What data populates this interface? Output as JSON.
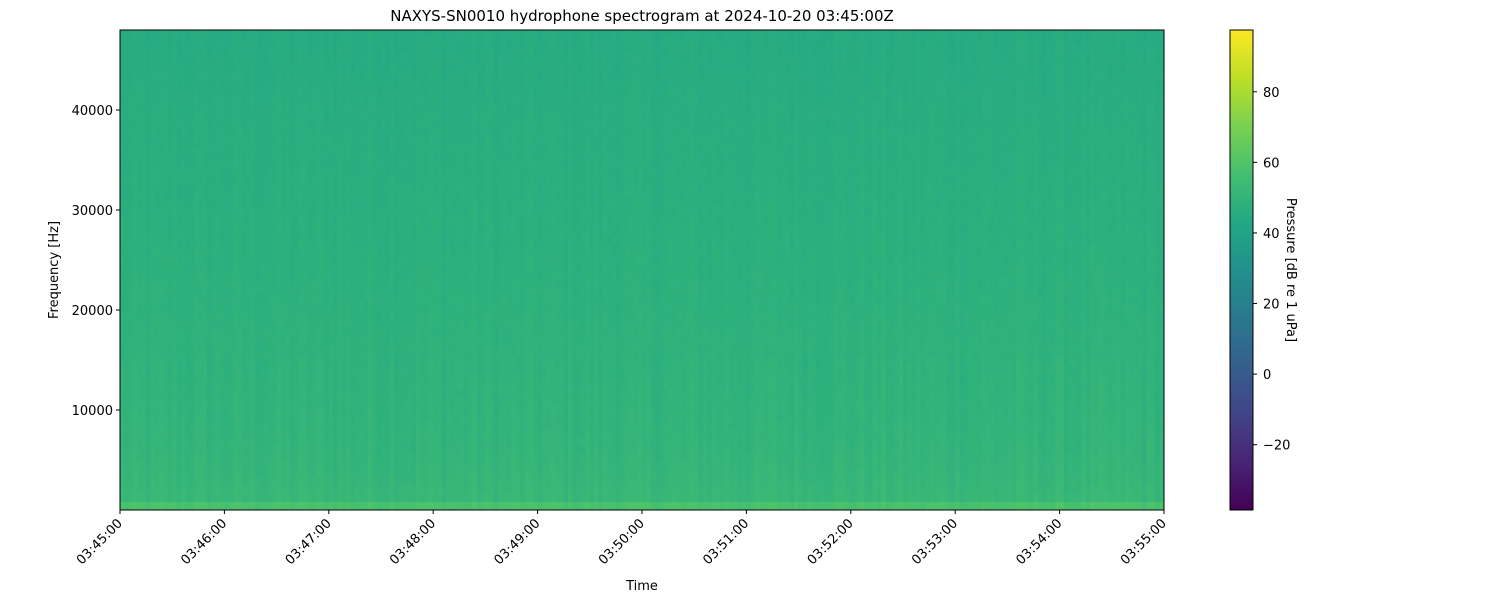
{
  "chart_data": {
    "type": "heatmap",
    "title": "NAXYS-SN0010 hydrophone spectrogram at 2024-10-20 03:45:00Z",
    "xlabel": "Time",
    "ylabel": "Frequency [Hz]",
    "colorbar_label": "Pressure [dB re 1 uPa]",
    "colormap": "viridis",
    "x_ticks": [
      "03:45:00",
      "03:46:00",
      "03:47:00",
      "03:48:00",
      "03:49:00",
      "03:50:00",
      "03:51:00",
      "03:52:00",
      "03:53:00",
      "03:54:00",
      "03:55:00"
    ],
    "xlim": [
      "03:45:00",
      "03:55:00"
    ],
    "y_ticks": [
      10000,
      20000,
      30000,
      40000
    ],
    "ylim": [
      0,
      48000
    ],
    "colorbar_ticks": [
      -20,
      0,
      20,
      40,
      60,
      80
    ],
    "clim": [
      -38.5,
      97.5
    ],
    "band_levels_db": {
      "frequencies_hz": [
        0,
        1000,
        3000,
        6000,
        12000,
        20000,
        30000,
        40000,
        48000
      ],
      "values": [
        62,
        52,
        51,
        50,
        49,
        48,
        47,
        46,
        45
      ]
    },
    "grid": false
  }
}
